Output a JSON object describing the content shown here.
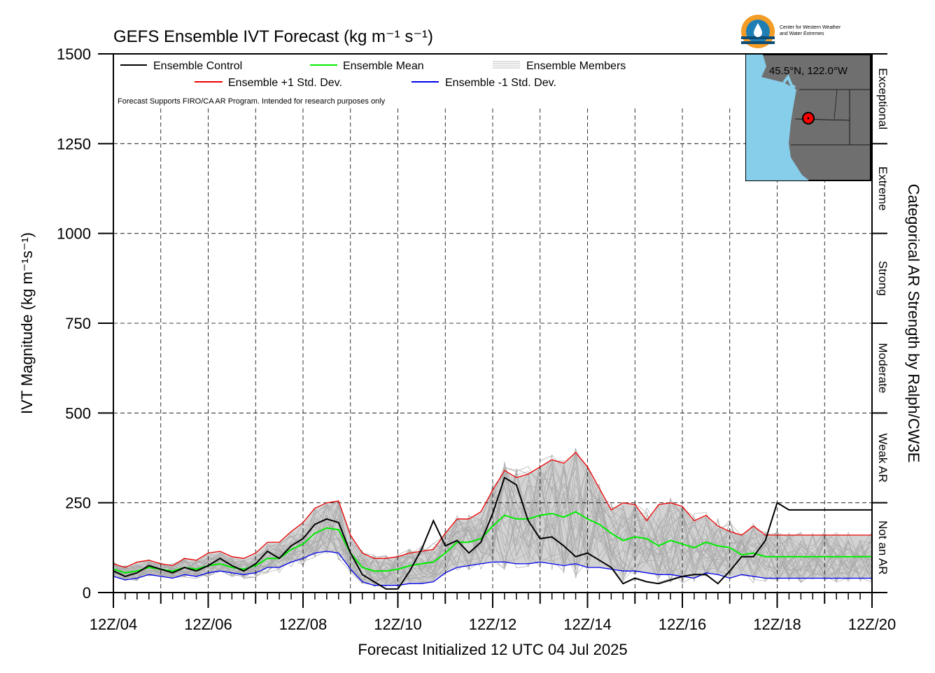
{
  "chart_data": {
    "type": "line",
    "title": "GEFS Ensemble IVT Forecast (kg m⁻¹ s⁻¹)",
    "xlabel": "Forecast Initialized 12 UTC 04 Jul 2025",
    "ylabel": "IVT Magnitude (kg m⁻¹s⁻¹)",
    "right_axis_label": "Categorical AR Strength by Ralph/CW3E",
    "ylim": [
      0,
      1500
    ],
    "xlim": [
      0,
      384
    ],
    "y_ticks": [
      0,
      250,
      500,
      750,
      1000,
      1250,
      1500
    ],
    "x_tick_labels": [
      "12Z/04",
      "12Z/06",
      "12Z/08",
      "12Z/10",
      "12Z/12",
      "12Z/14",
      "12Z/16",
      "12Z/18",
      "12Z/20"
    ],
    "categories_right": [
      {
        "label": "Not an AR",
        "range": [
          0,
          250
        ]
      },
      {
        "label": "Weak AR",
        "range": [
          250,
          500
        ]
      },
      {
        "label": "Moderate",
        "range": [
          500,
          750
        ]
      },
      {
        "label": "Strong",
        "range": [
          750,
          1000
        ]
      },
      {
        "label": "Extreme",
        "range": [
          1000,
          1250
        ]
      },
      {
        "label": "Exceptional",
        "range": [
          1250,
          1500
        ]
      }
    ],
    "note": "Forecast Supports FIRO/CA AR Program. Intended for research purposes only",
    "grid": true,
    "legend_position": "top-left",
    "colors": {
      "control": "#000000",
      "mean": "#00ee00",
      "plus": "#ee0000",
      "minus": "#0000ee",
      "members": "#aaaaaa",
      "spread": "#d3d3d3"
    },
    "legend": {
      "control": "Ensemble Control",
      "mean": "Ensemble Mean",
      "members": "Ensemble Members",
      "plus": "Ensemble +1 Std. Dev.",
      "minus": "Ensemble -1 Std. Dev."
    },
    "series": [
      {
        "name": "Ensemble Control",
        "x": [
          0,
          6,
          12,
          18,
          24,
          30,
          36,
          42,
          48,
          54,
          60,
          66,
          72,
          78,
          84,
          90,
          96,
          102,
          108,
          114,
          120,
          126,
          132,
          138,
          144,
          150,
          156,
          162,
          168,
          174,
          180,
          186,
          192,
          198,
          204,
          210,
          216,
          222,
          228,
          234,
          240,
          246,
          252,
          258,
          264,
          270,
          276,
          282,
          288,
          294,
          300,
          306,
          312,
          318,
          324,
          330,
          336,
          342,
          348,
          354,
          360,
          366,
          372,
          378,
          384
        ],
        "y": [
          60,
          45,
          55,
          75,
          65,
          55,
          70,
          60,
          75,
          95,
          75,
          60,
          80,
          115,
          95,
          130,
          150,
          190,
          205,
          195,
          110,
          50,
          30,
          10,
          10,
          60,
          120,
          200,
          130,
          145,
          110,
          140,
          220,
          320,
          300,
          200,
          150,
          155,
          130,
          100,
          110,
          90,
          70,
          25,
          40,
          30,
          25,
          35,
          45,
          50,
          50,
          25,
          60,
          100,
          100,
          145,
          250,
          230,
          230,
          230,
          230,
          230,
          230,
          230,
          230
        ]
      },
      {
        "name": "Ensemble Mean",
        "x": [
          0,
          6,
          12,
          18,
          24,
          30,
          36,
          42,
          48,
          54,
          60,
          66,
          72,
          78,
          84,
          90,
          96,
          102,
          108,
          114,
          120,
          126,
          132,
          138,
          144,
          150,
          156,
          162,
          168,
          174,
          180,
          186,
          192,
          198,
          204,
          210,
          216,
          222,
          228,
          234,
          240,
          246,
          252,
          258,
          264,
          270,
          276,
          282,
          288,
          294,
          300,
          306,
          312,
          318,
          324,
          330,
          336,
          342,
          348,
          354,
          360,
          366,
          372,
          378,
          384
        ],
        "y": [
          65,
          55,
          60,
          70,
          65,
          60,
          70,
          65,
          75,
          80,
          70,
          65,
          75,
          95,
          95,
          120,
          135,
          165,
          180,
          175,
          110,
          70,
          60,
          60,
          65,
          75,
          80,
          85,
          110,
          140,
          140,
          150,
          185,
          215,
          205,
          205,
          215,
          220,
          210,
          225,
          205,
          190,
          165,
          145,
          155,
          150,
          130,
          145,
          135,
          125,
          140,
          130,
          125,
          105,
          110,
          100,
          100,
          100,
          100,
          100,
          100,
          100,
          100,
          100,
          100
        ]
      },
      {
        "name": "Ensemble +1 Std. Dev.",
        "x": [
          0,
          6,
          12,
          18,
          24,
          30,
          36,
          42,
          48,
          54,
          60,
          66,
          72,
          78,
          84,
          90,
          96,
          102,
          108,
          114,
          120,
          126,
          132,
          138,
          144,
          150,
          156,
          162,
          168,
          174,
          180,
          186,
          192,
          198,
          204,
          210,
          216,
          222,
          228,
          234,
          240,
          246,
          252,
          258,
          264,
          270,
          276,
          282,
          288,
          294,
          300,
          306,
          312,
          318,
          324,
          330,
          336,
          342,
          348,
          354,
          360,
          366,
          372,
          378,
          384
        ],
        "y": [
          80,
          70,
          85,
          90,
          80,
          75,
          95,
          90,
          110,
          115,
          100,
          95,
          110,
          140,
          140,
          170,
          195,
          235,
          250,
          255,
          160,
          110,
          95,
          95,
          100,
          110,
          115,
          120,
          165,
          205,
          205,
          225,
          285,
          340,
          320,
          330,
          350,
          370,
          360,
          390,
          350,
          290,
          230,
          250,
          245,
          200,
          245,
          250,
          240,
          200,
          215,
          185,
          170,
          160,
          185,
          160,
          160,
          160,
          160,
          160,
          160,
          160,
          160,
          160,
          160
        ]
      },
      {
        "name": "Ensemble -1 Std. Dev.",
        "x": [
          0,
          6,
          12,
          18,
          24,
          30,
          36,
          42,
          48,
          54,
          60,
          66,
          72,
          78,
          84,
          90,
          96,
          102,
          108,
          114,
          120,
          126,
          132,
          138,
          144,
          150,
          156,
          162,
          168,
          174,
          180,
          186,
          192,
          198,
          204,
          210,
          216,
          222,
          228,
          234,
          240,
          246,
          252,
          258,
          264,
          270,
          276,
          282,
          288,
          294,
          300,
          306,
          312,
          318,
          324,
          330,
          336,
          342,
          348,
          354,
          360,
          366,
          372,
          378,
          384
        ],
        "y": [
          45,
          35,
          40,
          50,
          45,
          40,
          50,
          45,
          55,
          60,
          55,
          50,
          55,
          70,
          70,
          85,
          95,
          110,
          115,
          110,
          65,
          30,
          20,
          20,
          20,
          25,
          25,
          30,
          55,
          70,
          75,
          80,
          85,
          85,
          80,
          80,
          85,
          80,
          75,
          80,
          70,
          70,
          65,
          60,
          60,
          55,
          50,
          50,
          45,
          40,
          55,
          50,
          40,
          50,
          45,
          40,
          40,
          40,
          40,
          40,
          40,
          40,
          40,
          40,
          40
        ]
      }
    ]
  },
  "map": {
    "location_label": "45.5°N, 122.0°W"
  },
  "logo": {
    "text_line1": "Center for Western Weather",
    "text_line2": "and Water Extremes"
  }
}
